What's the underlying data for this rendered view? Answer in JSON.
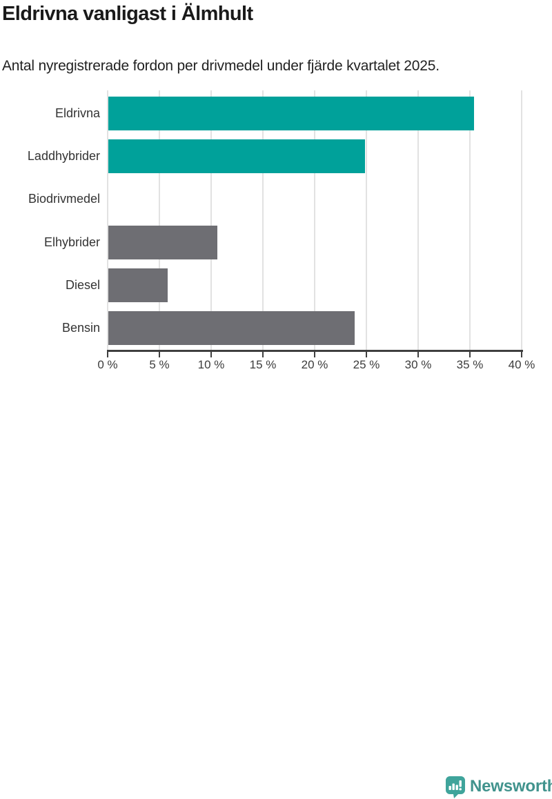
{
  "header": {
    "title": "Eldrivna vanligast i Älmhult",
    "subtitle": "Antal nyregistrerade fordon per drivmedel under fjärde kvartalet 2025."
  },
  "chart_data": {
    "type": "bar",
    "orientation": "horizontal",
    "title": "Eldrivna vanligast i Älmhult",
    "subtitle": "Antal nyregistrerade fordon per drivmedel under fjärde kvartalet 2025.",
    "categories": [
      "Eldrivna",
      "Laddhybrider",
      "Biodrivmedel",
      "Elhybrider",
      "Diesel",
      "Bensin"
    ],
    "values": [
      35.3,
      24.8,
      0,
      10.5,
      5.7,
      23.8
    ],
    "unit": "%",
    "bar_colors": [
      "#00a19a",
      "#00a19a",
      "#6e6e73",
      "#6e6e73",
      "#6e6e73",
      "#6e6e73"
    ],
    "highlight_color": "#00a19a",
    "base_color": "#6e6e73",
    "xlim": [
      0,
      40
    ],
    "x_ticks": [
      {
        "value": 0,
        "label": "0 %"
      },
      {
        "value": 5,
        "label": "5 %"
      },
      {
        "value": 10,
        "label": "10 %"
      },
      {
        "value": 15,
        "label": "15 %"
      },
      {
        "value": 20,
        "label": "20 %"
      },
      {
        "value": 25,
        "label": "25 %"
      },
      {
        "value": 30,
        "label": "30 %"
      },
      {
        "value": 35,
        "label": "35 %"
      },
      {
        "value": 40,
        "label": "40 %"
      },
      {
        "value": 45,
        "label": ""
      }
    ],
    "grid": true,
    "legend": "none",
    "ylabel": "",
    "xlabel": ""
  },
  "footer": {
    "brand": "Newsworthy",
    "logo_icon": "newsworthy-speech-bubble-bar-chart-icon",
    "brand_color": "#41938d",
    "icon_color": "#3fa49b"
  }
}
